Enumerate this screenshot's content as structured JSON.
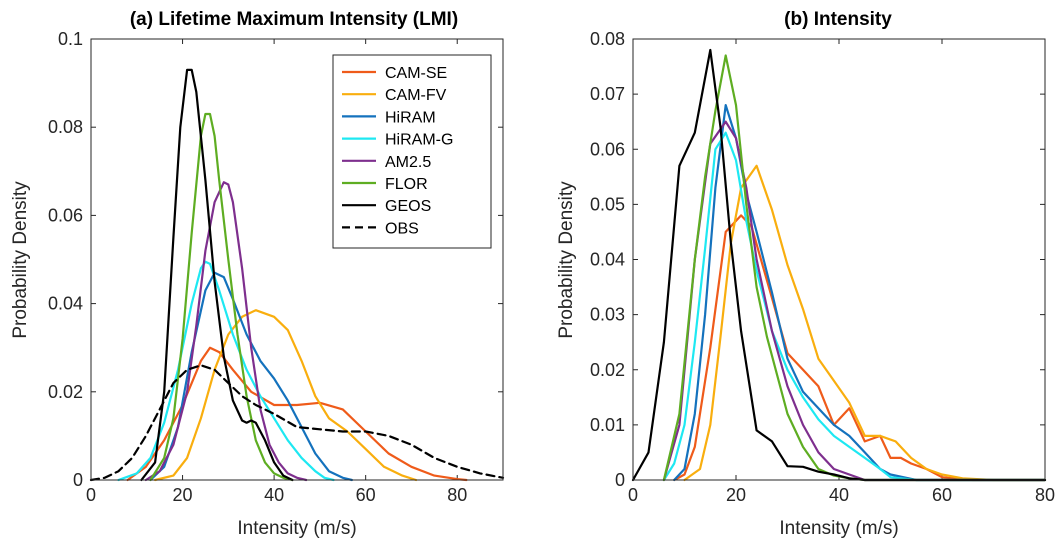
{
  "chart_data": [
    {
      "type": "line",
      "title": "(a) Lifetime Maximum Intensity (LMI)",
      "xlabel": "Intensity (m/s)",
      "ylabel": "Probability Density",
      "xlim": [
        0,
        90
      ],
      "ylim": [
        0,
        0.1
      ],
      "xticks": [
        0,
        20,
        40,
        60,
        80
      ],
      "xtick_labels": [
        "0",
        "20",
        "40",
        "60",
        "80"
      ],
      "yticks": [
        0,
        0.02,
        0.04,
        0.06,
        0.08,
        0.1
      ],
      "ytick_labels": [
        "0",
        "0.02",
        "0.04",
        "0.06",
        "0.08",
        "0.1"
      ],
      "grid": false,
      "legend": {
        "placement": "top-right",
        "entries": [
          "CAM-SE",
          "CAM-FV",
          "HiRAM",
          "HiRAM-G",
          "AM2.5",
          "FLOR",
          "GEOS",
          "OBS"
        ]
      },
      "series": [
        {
          "name": "CAM-SE",
          "color": "#EF5B1A",
          "dash": "solid",
          "x": [
            8,
            12,
            16,
            20,
            24,
            26,
            28,
            31,
            35,
            40,
            45,
            50,
            55,
            60,
            65,
            70,
            75,
            80,
            82
          ],
          "y": [
            0,
            0.003,
            0.009,
            0.017,
            0.027,
            0.03,
            0.029,
            0.025,
            0.02,
            0.017,
            0.017,
            0.0175,
            0.016,
            0.011,
            0.006,
            0.003,
            0.001,
            0.0002,
            0
          ]
        },
        {
          "name": "CAM-FV",
          "color": "#F9AE0E",
          "dash": "solid",
          "x": [
            14,
            18,
            21,
            24,
            27,
            30,
            33,
            36,
            40,
            43,
            46,
            49,
            52,
            56,
            60,
            64,
            68,
            71
          ],
          "y": [
            0,
            0.001,
            0.005,
            0.014,
            0.025,
            0.033,
            0.037,
            0.0385,
            0.037,
            0.034,
            0.027,
            0.019,
            0.014,
            0.011,
            0.007,
            0.003,
            0.001,
            0
          ]
        },
        {
          "name": "HiRAM",
          "color": "#1472BD",
          "dash": "solid",
          "x": [
            13,
            16,
            19,
            22,
            25,
            27,
            29,
            31,
            34,
            37,
            40,
            43,
            46,
            49,
            52,
            55,
            57
          ],
          "y": [
            0,
            0.003,
            0.012,
            0.029,
            0.043,
            0.047,
            0.046,
            0.041,
            0.033,
            0.027,
            0.023,
            0.018,
            0.012,
            0.006,
            0.002,
            0.0005,
            0
          ]
        },
        {
          "name": "HiRAM-G",
          "color": "#1EE8F2",
          "dash": "solid",
          "x": [
            6,
            10,
            13,
            16,
            19,
            22,
            24,
            25,
            26,
            28,
            31,
            34,
            37,
            40,
            43,
            46,
            49,
            51,
            53
          ],
          "y": [
            0,
            0.0015,
            0.005,
            0.013,
            0.025,
            0.04,
            0.048,
            0.0495,
            0.049,
            0.043,
            0.033,
            0.025,
            0.019,
            0.014,
            0.009,
            0.005,
            0.002,
            0.0005,
            0
          ]
        },
        {
          "name": "AM2.5",
          "color": "#7E2F8E",
          "dash": "solid",
          "x": [
            12,
            15,
            18,
            21,
            23,
            25,
            27,
            29,
            30,
            31,
            33,
            35,
            37,
            39,
            41,
            43,
            45,
            47
          ],
          "y": [
            0,
            0.002,
            0.008,
            0.02,
            0.035,
            0.052,
            0.063,
            0.0675,
            0.067,
            0.063,
            0.048,
            0.03,
            0.016,
            0.008,
            0.004,
            0.0015,
            0.0005,
            0
          ]
        },
        {
          "name": "FLOR",
          "color": "#5EAD22",
          "dash": "solid",
          "x": [
            13,
            16,
            18,
            20,
            22,
            24,
            25,
            26,
            27,
            28,
            30,
            32,
            34,
            36,
            38,
            40,
            42,
            44
          ],
          "y": [
            0,
            0.005,
            0.014,
            0.032,
            0.056,
            0.078,
            0.083,
            0.083,
            0.078,
            0.068,
            0.05,
            0.033,
            0.019,
            0.009,
            0.004,
            0.0015,
            0.0005,
            0
          ]
        },
        {
          "name": "GEOS",
          "color": "#000000",
          "dash": "solid",
          "x": [
            11,
            14,
            16,
            18,
            19.5,
            21,
            22,
            23,
            25,
            27,
            29,
            31,
            33,
            34,
            35,
            36,
            38,
            40,
            42,
            44
          ],
          "y": [
            0,
            0.004,
            0.02,
            0.055,
            0.08,
            0.093,
            0.093,
            0.088,
            0.068,
            0.045,
            0.028,
            0.018,
            0.0135,
            0.013,
            0.0135,
            0.013,
            0.009,
            0.004,
            0.001,
            0
          ]
        },
        {
          "name": "OBS",
          "color": "#000000",
          "dash": "dashed",
          "x": [
            0,
            3,
            6,
            9,
            12,
            15,
            18,
            21,
            24,
            27,
            30,
            33,
            36,
            40,
            45,
            50,
            55,
            60,
            65,
            70,
            75,
            80,
            85,
            90
          ],
          "y": [
            0,
            0.0005,
            0.002,
            0.005,
            0.01,
            0.016,
            0.022,
            0.025,
            0.026,
            0.025,
            0.022,
            0.019,
            0.017,
            0.015,
            0.012,
            0.0115,
            0.011,
            0.011,
            0.01,
            0.008,
            0.005,
            0.003,
            0.0015,
            0.0005
          ]
        }
      ]
    },
    {
      "type": "line",
      "title": "(b) Intensity",
      "xlabel": "Intensity (m/s)",
      "ylabel": "Probability Density",
      "xlim": [
        0,
        80
      ],
      "ylim": [
        0,
        0.08
      ],
      "xticks": [
        0,
        20,
        40,
        60,
        80
      ],
      "xtick_labels": [
        "0",
        "20",
        "40",
        "60",
        "80"
      ],
      "yticks": [
        0,
        0.01,
        0.02,
        0.03,
        0.04,
        0.05,
        0.06,
        0.07,
        0.08
      ],
      "ytick_labels": [
        "0",
        "0.01",
        "0.02",
        "0.03",
        "0.04",
        "0.05",
        "0.06",
        "0.07",
        "0.08"
      ],
      "grid": false,
      "series": [
        {
          "name": "CAM-SE",
          "color": "#EF5B1A",
          "dash": "solid",
          "x": [
            8,
            10,
            12,
            15,
            18,
            21,
            23,
            27,
            30,
            33,
            36,
            39,
            42,
            45,
            48,
            50,
            52,
            54,
            57,
            60,
            63,
            66,
            70,
            80
          ],
          "y": [
            0,
            0.001,
            0.006,
            0.024,
            0.045,
            0.048,
            0.046,
            0.033,
            0.023,
            0.02,
            0.017,
            0.01,
            0.013,
            0.007,
            0.008,
            0.004,
            0.004,
            0.003,
            0.002,
            0.0005,
            0.0002,
            0,
            0,
            0
          ]
        },
        {
          "name": "CAM-FV",
          "color": "#F9AE0E",
          "dash": "solid",
          "x": [
            10,
            13,
            15,
            17,
            19,
            21,
            24,
            27,
            30,
            33,
            36,
            39,
            42,
            45,
            48,
            51,
            54,
            57,
            60,
            64,
            70,
            80
          ],
          "y": [
            0,
            0.002,
            0.01,
            0.026,
            0.043,
            0.053,
            0.057,
            0.049,
            0.039,
            0.031,
            0.022,
            0.018,
            0.014,
            0.008,
            0.008,
            0.007,
            0.004,
            0.002,
            0.001,
            0.0003,
            0,
            0
          ]
        },
        {
          "name": "HiRAM",
          "color": "#1472BD",
          "dash": "solid",
          "x": [
            8,
            10,
            12,
            14,
            16,
            18,
            20,
            22,
            24,
            27,
            30,
            33,
            36,
            39,
            42,
            45,
            48,
            50,
            55,
            60,
            80
          ],
          "y": [
            0,
            0.002,
            0.012,
            0.03,
            0.053,
            0.068,
            0.062,
            0.052,
            0.045,
            0.034,
            0.022,
            0.016,
            0.013,
            0.01,
            0.008,
            0.005,
            0.002,
            0.001,
            0,
            0,
            0
          ]
        },
        {
          "name": "HiRAM-G",
          "color": "#1EE8F2",
          "dash": "solid",
          "x": [
            6,
            8,
            10,
            12,
            14,
            16,
            18,
            20,
            22,
            24,
            27,
            30,
            33,
            36,
            39,
            42,
            45,
            48,
            50,
            55,
            80
          ],
          "y": [
            0,
            0.003,
            0.01,
            0.025,
            0.042,
            0.06,
            0.063,
            0.058,
            0.047,
            0.038,
            0.027,
            0.02,
            0.015,
            0.011,
            0.008,
            0.006,
            0.004,
            0.002,
            0.0005,
            0,
            0
          ]
        },
        {
          "name": "AM2.5",
          "color": "#7E2F8E",
          "dash": "solid",
          "x": [
            6,
            9,
            12,
            15,
            18,
            20,
            22,
            24,
            27,
            30,
            33,
            36,
            39,
            42,
            45,
            50,
            80
          ],
          "y": [
            0,
            0.01,
            0.04,
            0.061,
            0.065,
            0.062,
            0.053,
            0.04,
            0.027,
            0.017,
            0.01,
            0.005,
            0.002,
            0.001,
            0,
            0,
            0
          ]
        },
        {
          "name": "FLOR",
          "color": "#5EAD22",
          "dash": "solid",
          "x": [
            6,
            9,
            12,
            14,
            16,
            18,
            20,
            22,
            24,
            26,
            28,
            30,
            33,
            36,
            39,
            42,
            45,
            50,
            80
          ],
          "y": [
            0,
            0.012,
            0.04,
            0.055,
            0.067,
            0.077,
            0.068,
            0.05,
            0.035,
            0.026,
            0.019,
            0.012,
            0.006,
            0.002,
            0.0008,
            0.0003,
            0,
            0,
            0
          ]
        },
        {
          "name": "GEOS",
          "color": "#000000",
          "dash": "solid",
          "x": [
            0,
            3,
            6,
            9,
            12,
            15,
            17,
            19,
            21,
            24,
            27,
            30,
            33,
            36,
            39,
            42,
            45,
            80
          ],
          "y": [
            0,
            0.005,
            0.025,
            0.057,
            0.063,
            0.078,
            0.064,
            0.043,
            0.027,
            0.009,
            0.007,
            0.0025,
            0.0024,
            0.0015,
            0.001,
            0.0003,
            0,
            0
          ]
        }
      ]
    }
  ]
}
